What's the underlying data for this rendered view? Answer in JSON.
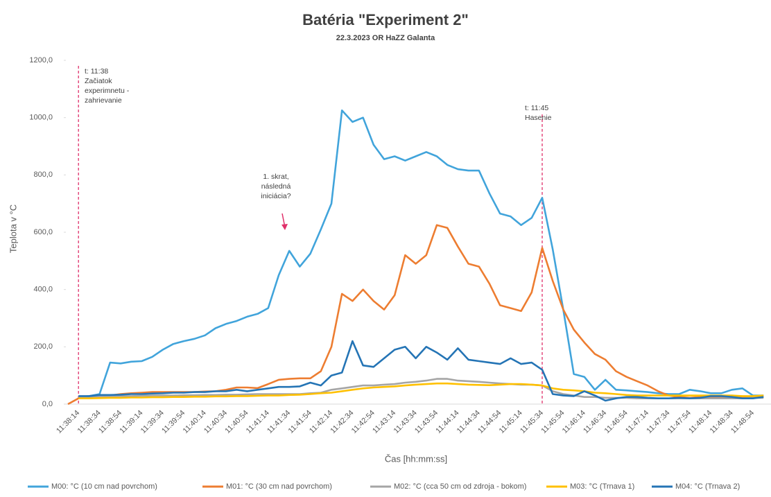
{
  "chart_data": {
    "type": "line",
    "title": "Batéria \"Experiment 2\"",
    "subtitle": "22.3.2023 OR HaZZ Galanta",
    "x_label": "Čas [hh:mm:ss]",
    "y_label": "Teplota v °C",
    "categories": [
      null,
      "11:38:14",
      null,
      "11:38:34",
      null,
      "11:38:54",
      null,
      "11:39:14",
      null,
      "11:39:34",
      null,
      "11:39:54",
      null,
      "11:40:14",
      null,
      "11:40:34",
      null,
      "11:40:54",
      null,
      "11:41:14",
      null,
      "11:41:34",
      null,
      "11:41:54",
      null,
      "11:42:14",
      null,
      "11:42:34",
      null,
      "11:42:54",
      null,
      "11:43:14",
      null,
      "11:43:34",
      null,
      "11:43:54",
      null,
      "11:44:14",
      null,
      "11:44:34",
      null,
      "11:44:54",
      null,
      "11:45:14",
      null,
      "11:45:34",
      null,
      "11:45:54",
      null,
      "11:46:14",
      null,
      "11:46:34",
      null,
      "11:46:54",
      null,
      "11:47:14",
      null,
      "11:47:34",
      null,
      "11:47:54",
      null,
      "11:48:14",
      null,
      "11:48:34",
      null,
      "11:48:54",
      null
    ],
    "series": [
      {
        "name": "M00: °C (10 cm nad povrchom)",
        "color": "#41a4db",
        "values": [
          null,
          25,
          28,
          35,
          145,
          142,
          148,
          150,
          165,
          190,
          210,
          220,
          228,
          240,
          265,
          280,
          290,
          305,
          315,
          335,
          450,
          535,
          480,
          525,
          610,
          700,
          1025,
          985,
          1000,
          905,
          855,
          865,
          850,
          865,
          880,
          865,
          835,
          820,
          815,
          815,
          735,
          665,
          655,
          625,
          650,
          720,
          540,
          330,
          105,
          95,
          50,
          85,
          50,
          48,
          45,
          42,
          38,
          35,
          35,
          50,
          45,
          38,
          38,
          50,
          55,
          30,
          30
        ]
      },
      {
        "name": "M01: °C (30 cm nad povrchom)",
        "color": "#ed7d31",
        "values": [
          0,
          20,
          22,
          25,
          30,
          35,
          38,
          40,
          42,
          42,
          42,
          42,
          42,
          44,
          45,
          50,
          58,
          58,
          56,
          70,
          85,
          88,
          90,
          90,
          115,
          200,
          385,
          360,
          400,
          360,
          330,
          380,
          520,
          490,
          520,
          625,
          615,
          550,
          490,
          480,
          420,
          345,
          335,
          325,
          390,
          545,
          430,
          330,
          260,
          215,
          175,
          155,
          115,
          95,
          80,
          65,
          45,
          30,
          25,
          22,
          25,
          25,
          25,
          25,
          22,
          25,
          28
        ]
      },
      {
        "name": "M02: °C (cca 50 cm od zdroja - bokom)",
        "color": "#a5a5a5",
        "values": [
          null,
          25,
          25,
          26,
          27,
          28,
          28,
          29,
          30,
          30,
          30,
          31,
          31,
          32,
          32,
          33,
          33,
          34,
          35,
          35,
          35,
          35,
          35,
          38,
          40,
          50,
          55,
          60,
          65,
          65,
          68,
          70,
          75,
          78,
          82,
          88,
          88,
          82,
          80,
          78,
          75,
          72,
          70,
          68,
          68,
          65,
          45,
          35,
          30,
          25,
          25,
          22,
          22,
          22,
          20,
          20,
          20,
          20,
          20,
          20,
          20,
          20,
          20,
          20,
          20,
          22,
          22
        ]
      },
      {
        "name": "M03: °C (Trnava 1)",
        "color": "#ffc000",
        "values": [
          null,
          20,
          20,
          21,
          22,
          22,
          23,
          23,
          24,
          24,
          25,
          25,
          26,
          26,
          27,
          27,
          28,
          28,
          29,
          30,
          30,
          32,
          33,
          35,
          38,
          40,
          45,
          50,
          55,
          58,
          60,
          62,
          65,
          68,
          70,
          72,
          72,
          70,
          68,
          67,
          66,
          68,
          70,
          70,
          68,
          65,
          55,
          50,
          48,
          45,
          40,
          38,
          35,
          32,
          30,
          30,
          30,
          30,
          30,
          30,
          30,
          30,
          30,
          30,
          28,
          28,
          30
        ]
      },
      {
        "name": "M04: °C (Trnava 2)",
        "color": "#2474b5",
        "values": [
          null,
          28,
          28,
          32,
          32,
          33,
          35,
          35,
          37,
          38,
          40,
          40,
          42,
          42,
          45,
          45,
          50,
          45,
          50,
          55,
          60,
          60,
          62,
          75,
          65,
          100,
          110,
          220,
          135,
          130,
          160,
          190,
          200,
          160,
          200,
          180,
          155,
          195,
          155,
          150,
          145,
          140,
          160,
          140,
          145,
          120,
          35,
          30,
          28,
          45,
          30,
          12,
          20,
          25,
          25,
          22,
          20,
          20,
          22,
          20,
          22,
          28,
          28,
          25,
          20,
          20,
          25
        ]
      }
    ],
    "ylim": [
      0,
      1200
    ],
    "yticks": [
      {
        "value": 0,
        "label": "0,0"
      },
      {
        "value": 200,
        "label": "200,0"
      },
      {
        "value": 400,
        "label": "400,0"
      },
      {
        "value": 600,
        "label": "600,0"
      },
      {
        "value": 800,
        "label": "800,0"
      },
      {
        "value": 1000,
        "label": "1000,0"
      },
      {
        "value": 1200,
        "label": "1200,0"
      }
    ],
    "grid": false,
    "legend": "bottom",
    "annotations": [
      {
        "lines": [
          "t: 11:38",
          "Začiatok",
          "experimnetu -",
          "zahrievanie"
        ]
      },
      {
        "lines": [
          "1. skrat,",
          "následná",
          "iniciácia?"
        ]
      },
      {
        "lines": [
          "t: 11:45",
          "Hasenie"
        ]
      }
    ]
  }
}
